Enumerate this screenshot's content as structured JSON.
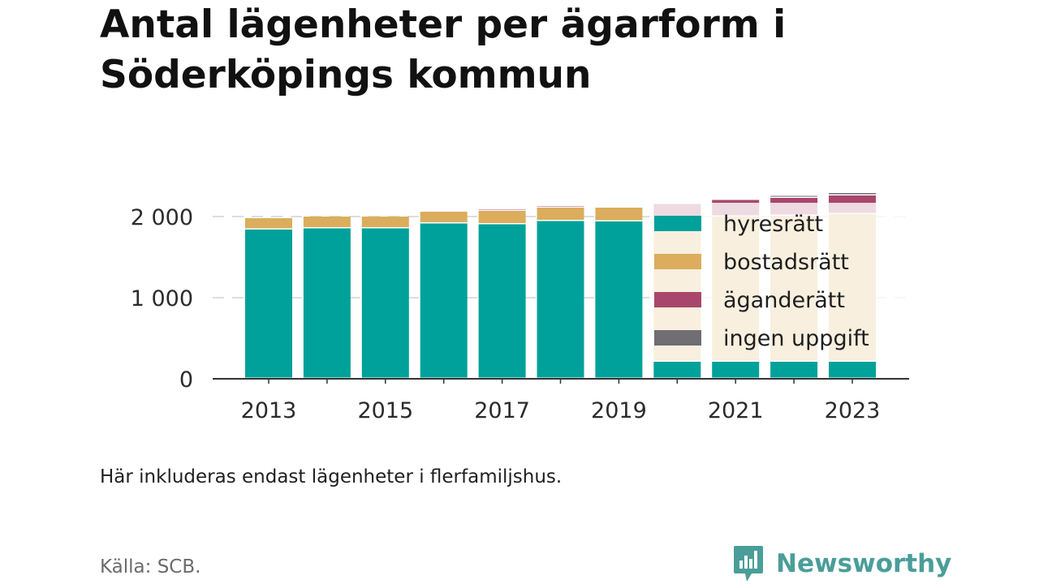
{
  "chart_data": {
    "type": "bar",
    "stacked": true,
    "title": "Antal lägenheter per ägarform i Söderköpings kommun",
    "categories": [
      "2013",
      "2014",
      "2015",
      "2016",
      "2017",
      "2018",
      "2019",
      "2020",
      "2021",
      "2022",
      "2023"
    ],
    "x_tick_labels": [
      "2013",
      "2015",
      "2017",
      "2019",
      "2021",
      "2023"
    ],
    "y_ticks": [
      0,
      1000,
      2000
    ],
    "y_tick_labels": [
      "0",
      "1 000",
      "2 000"
    ],
    "ylim": [
      0,
      2250
    ],
    "grid": true,
    "legend_position": "right-inside",
    "series": [
      {
        "name": "hyresrätt",
        "color": "#00a19a",
        "values": [
          1840,
          1855,
          1855,
          1915,
          1905,
          1945,
          1940,
          210,
          210,
          210,
          210
        ]
      },
      {
        "name": "bostadsrätt",
        "color": "#dbad5c",
        "values": [
          140,
          145,
          145,
          145,
          165,
          165,
          170,
          1780,
          1790,
          1800,
          1820
        ]
      },
      {
        "name": "äganderätt",
        "color": "#a8476b",
        "values": [
          0,
          0,
          0,
          0,
          20,
          20,
          0,
          165,
          205,
          220,
          230
        ]
      },
      {
        "name": "ingen uppgift",
        "color": "#6e6e73",
        "values": [
          0,
          0,
          0,
          0,
          0,
          0,
          0,
          10,
          15,
          25,
          30
        ]
      }
    ]
  },
  "note": "Här inkluderas endast lägenheter i flerfamiljshus.",
  "source": "Källa: SCB.",
  "brand": {
    "name": "Newsworthy"
  }
}
